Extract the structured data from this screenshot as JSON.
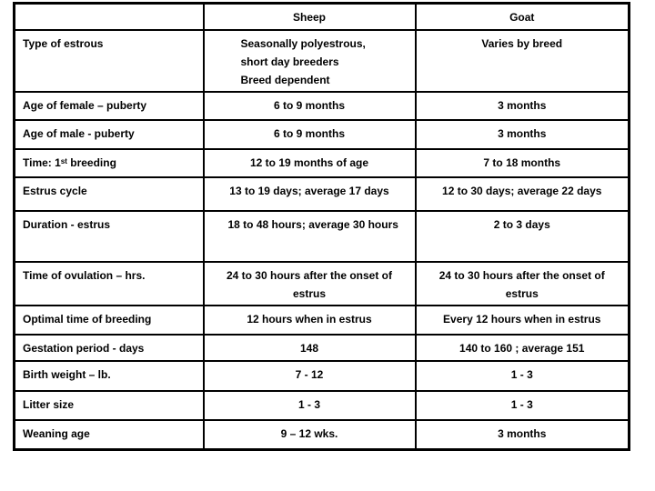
{
  "table": {
    "header": {
      "blank": "",
      "sheep": "Sheep",
      "goat": "Goat"
    },
    "rows": [
      {
        "label": "Type of estrous",
        "sheep": "Seasonally polyestrous,\nshort day breeders\nBreed dependent",
        "goat": "Varies by breed"
      },
      {
        "label": "Age of female – puberty",
        "sheep": "6 to 9 months",
        "goat": "3 months"
      },
      {
        "label": "Age of male - puberty",
        "sheep": "6 to 9 months",
        "goat": "3 months"
      },
      {
        "label": "Time: 1ˢᵗ breeding",
        "sheep": "12 to 19 months of age",
        "goat": "7 to 18 months"
      },
      {
        "label": "Estrus cycle",
        "sheep": "13 to 19 days; average 17 days",
        "goat": "12 to 30 days; average 22 days"
      },
      {
        "label": "Duration - estrus",
        "sheep": "18 to 48 hours; average 30 hours",
        "goat": "2 to 3 days"
      },
      {
        "label": "Time of ovulation – hrs.",
        "sheep": "24 to 30 hours after the onset of estrus",
        "goat": "24 to 30 hours after the onset of estrus"
      },
      {
        "label": "Optimal time of breeding",
        "sheep": "12 hours when in estrus",
        "goat": "Every 12 hours when in estrus"
      },
      {
        "label": "Gestation period - days",
        "sheep": "148",
        "goat": "140 to 160 ; average 151"
      },
      {
        "label": "Birth weight – lb.",
        "sheep": "7 - 12",
        "goat": "1 - 3"
      },
      {
        "label": "Litter size",
        "sheep": "1 - 3",
        "goat": "1 - 3"
      },
      {
        "label": "Weaning age",
        "sheep": "9 – 12 wks.",
        "goat": "3 months"
      }
    ],
    "colors": {
      "border": "#000000",
      "text": "#000000",
      "background": "#ffffff"
    }
  }
}
